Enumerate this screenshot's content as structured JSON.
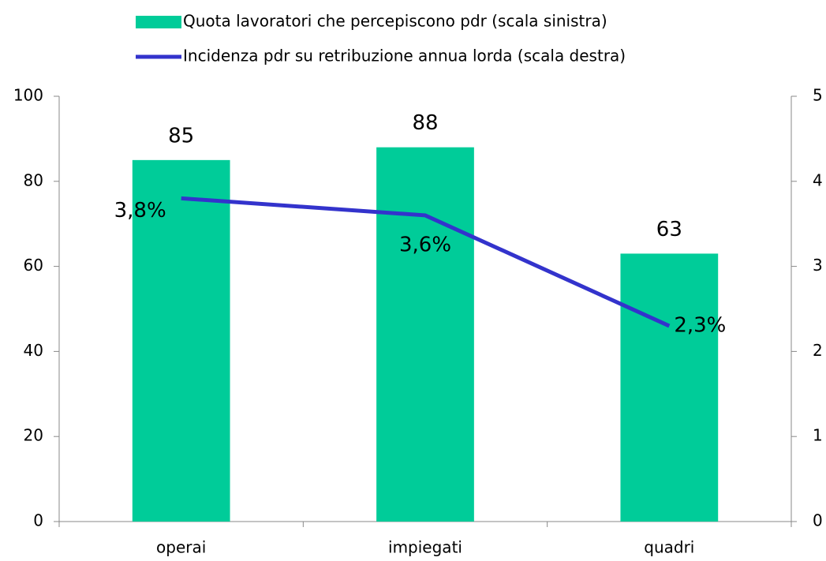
{
  "chart_data": {
    "type": "bar",
    "categories": [
      "operai",
      "impiegati",
      "quadri"
    ],
    "series": [
      {
        "name": "Quota lavoratori che percepiscono pdr (scala sinistra)",
        "type": "bar",
        "color": "#00cc99",
        "values": [
          85,
          88,
          63
        ]
      },
      {
        "name": "Incidenza pdr su retribuzione annua lorda (scala destra)",
        "type": "line",
        "axis": "y2",
        "color": "#3333cc",
        "values": [
          3.8,
          3.6,
          2.3
        ],
        "value_labels": [
          "3,8%",
          "3,6%",
          "2,3%"
        ]
      }
    ],
    "ylim": [
      0,
      100
    ],
    "yticks": [
      0,
      20,
      40,
      60,
      80,
      100
    ],
    "y2lim": [
      0,
      5
    ],
    "y2ticks": [
      0,
      1,
      2,
      3,
      4,
      5
    ],
    "grid": false,
    "legend": "top"
  }
}
